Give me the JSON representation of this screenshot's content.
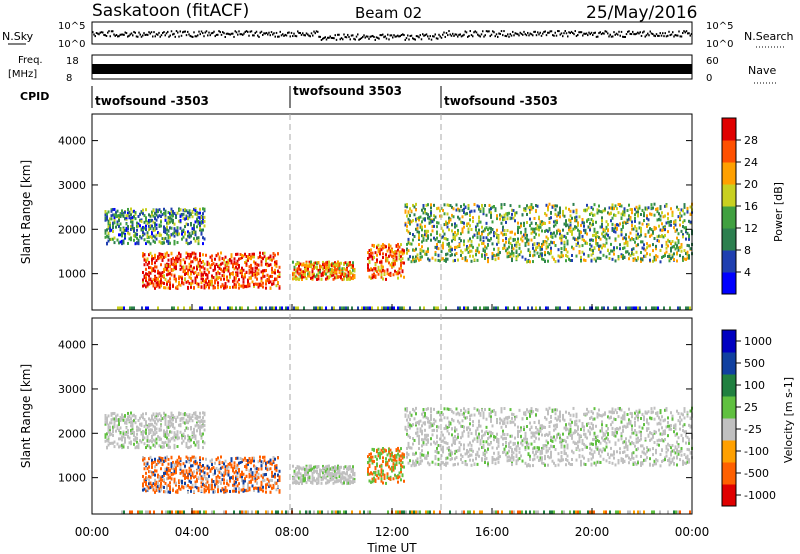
{
  "header": {
    "station": "Saskatoon (fitACF)",
    "beam": "Beam 02",
    "date": "25/May/2016"
  },
  "noise_panel": {
    "left_label": "N.Sky",
    "right_label": "N.Search",
    "left_ticks": [
      "10^5",
      "10^0"
    ],
    "right_ticks": [
      "10^5",
      "10^0"
    ]
  },
  "freq_panel": {
    "left_label_1": "Freq.",
    "left_label_2": "[MHz]",
    "left_ticks": [
      "18",
      "8"
    ],
    "right_label": "Nave",
    "right_ticks": [
      "60",
      "0"
    ]
  },
  "cpid": {
    "label": "CPID",
    "segments": [
      "twofsound -3503",
      "twofsound 3503",
      "twofsound -3503"
    ]
  },
  "time_axis": {
    "label": "Time UT",
    "ticks": [
      "00:00",
      "04:00",
      "08:00",
      "12:00",
      "16:00",
      "20:00",
      "00:00"
    ]
  },
  "colors": {
    "power_scale": [
      "#0000ff",
      "#1f3fb0",
      "#2c7f4f",
      "#40a040",
      "#c8d020",
      "#ffa000",
      "#ff5000",
      "#e00000"
    ],
    "velocity_scale": [
      "#0000c0",
      "#1040a0",
      "#208040",
      "#60c040",
      "#c0c0c0",
      "#ffa000",
      "#ff6000",
      "#e00000"
    ]
  },
  "chart_data": [
    {
      "type": "heatmap",
      "title": "Power",
      "ylabel": "Slant Range [km]",
      "xlabel": "",
      "x_range_hours": [
        0,
        24
      ],
      "ylim": [
        180,
        4600
      ],
      "yticks": [
        "1000",
        "2000",
        "3000",
        "4000"
      ],
      "colorbar": {
        "label": "Power [dB]",
        "ticks": [
          "4",
          "8",
          "12",
          "16",
          "20",
          "24",
          "28"
        ],
        "range": [
          0,
          30
        ]
      },
      "echo_bands_description_values": [
        {
          "t_start": 0.5,
          "t_end": 4.5,
          "range_km": [
            1700,
            2500
          ],
          "power_db": 10
        },
        {
          "t_start": 2.0,
          "t_end": 7.5,
          "range_km": [
            700,
            1500
          ],
          "power_db": 26
        },
        {
          "t_start": 8.0,
          "t_end": 10.5,
          "range_km": [
            900,
            1300
          ],
          "power_db": 22
        },
        {
          "t_start": 11.0,
          "t_end": 12.5,
          "range_km": [
            900,
            1700
          ],
          "power_db": 24
        },
        {
          "t_start": 12.5,
          "t_end": 24.0,
          "range_km": [
            1300,
            2600
          ],
          "power_db": 14
        }
      ]
    },
    {
      "type": "heatmap",
      "title": "Velocity",
      "ylabel": "Slant Range [km]",
      "xlabel": "Time UT",
      "x_range_hours": [
        0,
        24
      ],
      "ylim": [
        180,
        4600
      ],
      "yticks": [
        "1000",
        "2000",
        "3000",
        "4000"
      ],
      "colorbar": {
        "label": "Velocity [m s-1]",
        "ticks": [
          "1000",
          "500",
          "100",
          "25",
          "-25",
          "-100",
          "-500",
          "-1000"
        ]
      }
    }
  ]
}
